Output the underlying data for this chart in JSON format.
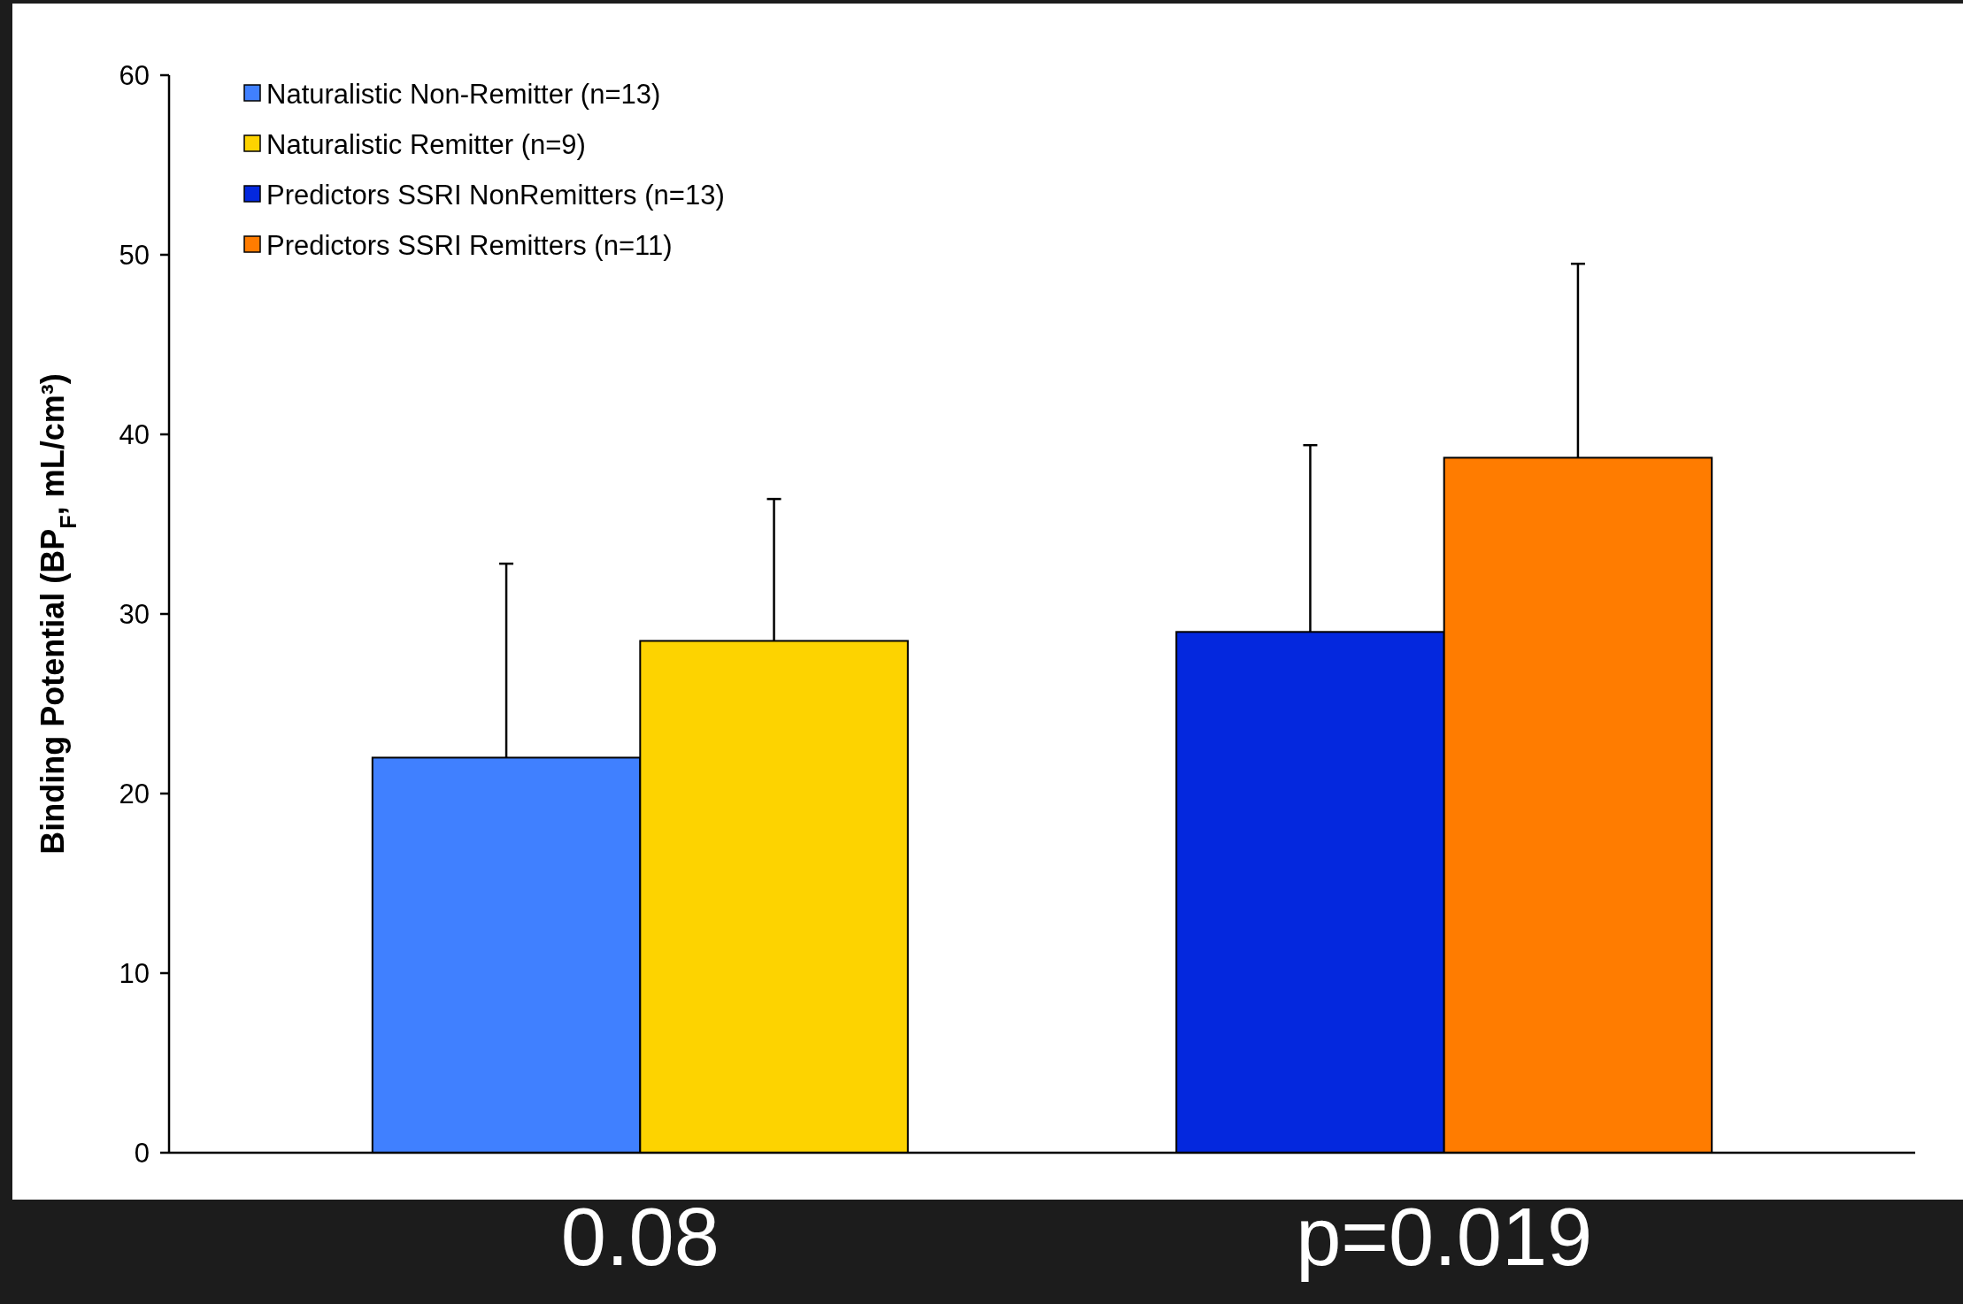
{
  "chart_data": {
    "type": "bar",
    "ylabel": "Binding Potential (BP$_{F}$, mL/cm³)",
    "categories": [
      null,
      null
    ],
    "series": [
      {
        "name": "Naturalistic Non-Remitter (n=13)",
        "color": "#4080ff",
        "values": [
          22,
          null
        ],
        "errors": [
          [
            22,
            32.8
          ],
          null
        ]
      },
      {
        "name": "Naturalistic Remitter (n=9)",
        "color": "#fdd300",
        "values": [
          28.5,
          null
        ],
        "errors": [
          [
            28.5,
            36.4
          ],
          null
        ]
      },
      {
        "name": "Predictors SSRI NonRemitters (n=13)",
        "color": "#0428de",
        "values": [
          null,
          29
        ],
        "errors": [
          null,
          [
            29,
            39.4
          ]
        ]
      },
      {
        "name": "Predictors SSRI Remitters (n=11)",
        "color": "#ff7c00",
        "values": [
          null,
          38.7
        ],
        "errors": [
          null,
          [
            38.7,
            49.5
          ]
        ]
      }
    ],
    "ylim": [
      0,
      60
    ],
    "yticks": [
      0,
      10,
      20,
      30,
      40,
      50,
      60
    ],
    "grid": false,
    "legend": "top left",
    "annotations": [
      "0.08",
      "p=0.019"
    ]
  }
}
